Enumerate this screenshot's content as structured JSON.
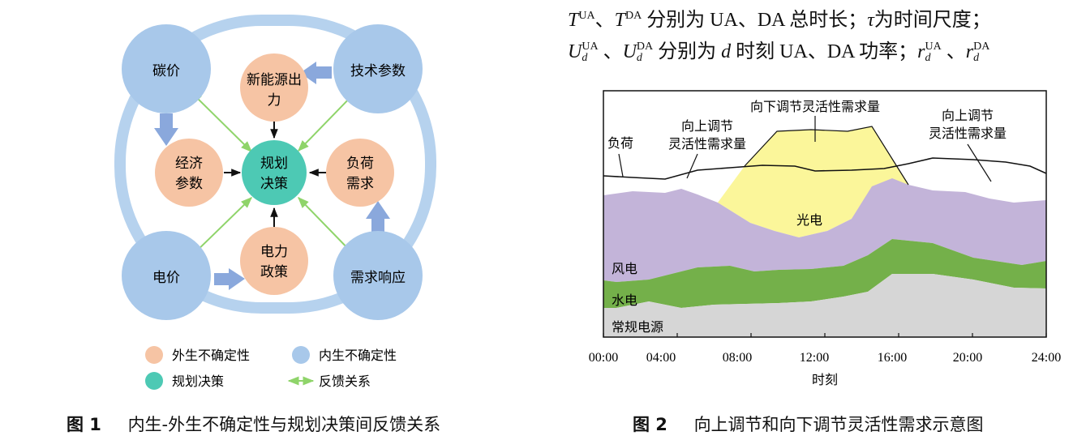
{
  "figure1": {
    "caption_num": "图 1",
    "caption_text": "内生-外生不确定性与规划决策间反馈关系",
    "nodes": {
      "carbon_price": "碳价",
      "tech_params": "技术参数",
      "electricity_price": "电价",
      "demand_response": "需求响应",
      "renewable_output_1": "新能源出",
      "renewable_output_2": "力",
      "economic_params_1": "经济",
      "economic_params_2": "参数",
      "load_demand_1": "负荷",
      "load_demand_2": "需求",
      "power_policy_1": "电力",
      "power_policy_2": "政策",
      "planning_decision_1": "规划",
      "planning_decision_2": "决策"
    },
    "legend": {
      "exogenous": "外生不确定性",
      "endogenous": "内生不确定性",
      "decision": "规划决策",
      "feedback": "反馈关系"
    },
    "colors": {
      "exogenous": "#f6c4a4",
      "endogenous": "#a8c8ea",
      "decision": "#4dc9b4",
      "feedback": "#8fd46a",
      "ring": "#b6d2ee",
      "block_arrow": "#8aa8dc"
    }
  },
  "formula_text": {
    "line1": {
      "T1": "T",
      "T1_sup": "UA",
      "sep1": "、",
      "T2": "T",
      "T2_sup": "DA",
      "mid": " 分别为 UA、DA 总时长；",
      "tau": "τ",
      "end": "为时间尺度；"
    },
    "line2": {
      "U1": "U",
      "U1_sup": "UA",
      "U1_sub": "d",
      "sep1": " 、",
      "U2": "U",
      "U2_sup": "DA",
      "U2_sub": "d",
      "mid1": " 分别为 ",
      "d": "d",
      "mid2": " 时刻 UA、DA 功率；",
      "r1": "r",
      "r1_sup": "UA",
      "r1_sub": "d",
      "sep2": " 、",
      "r2": "r",
      "r2_sup": "DA",
      "r2_sub": "d"
    }
  },
  "figure2": {
    "caption_num": "图 2",
    "caption_text": "向上调节和向下调节灵活性需求示意图",
    "labels": {
      "load": "负荷",
      "up_flex_left_1": "向上调节",
      "up_flex_left_2": "灵活性需求量",
      "down_flex": "向下调节灵活性需求量",
      "up_flex_right_1": "向上调节",
      "up_flex_right_2": "灵活性需求量",
      "pv": "光电",
      "wind": "风电",
      "hydro": "水电",
      "conventional": "常规电源"
    },
    "colors": {
      "pv": "#fbf69a",
      "wind": "#c3b4d9",
      "hydro": "#74b04a",
      "conventional": "#d6d6d6"
    },
    "chart_data": {
      "type": "area",
      "xlabel": "时刻",
      "x_ticks": [
        "00:00",
        "04:00",
        "08:00",
        "12:00",
        "16:00",
        "20:00",
        "24:00"
      ],
      "series": [
        {
          "name": "常规电源"
        },
        {
          "name": "水电"
        },
        {
          "name": "风电"
        },
        {
          "name": "光电"
        },
        {
          "name": "负荷"
        }
      ]
    }
  }
}
